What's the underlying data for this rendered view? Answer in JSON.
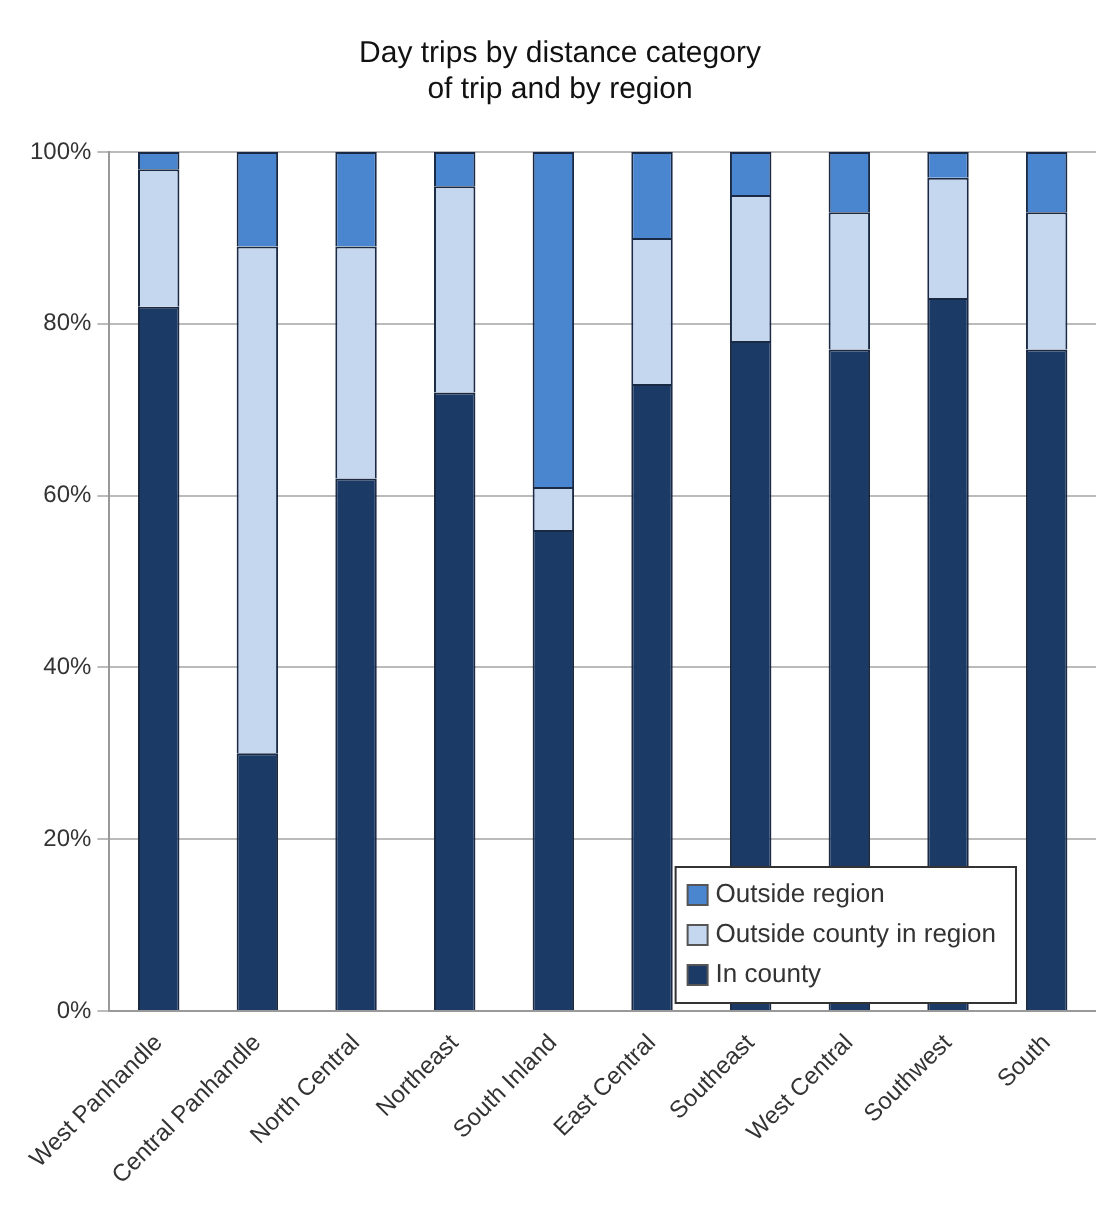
{
  "chart_data": {
    "type": "bar",
    "title": "Day trips by distance category\nof trip and by region",
    "stacked": true,
    "categories": [
      "West Panhandle",
      "Central Panhandle",
      "North Central",
      "Northeast",
      "South Inland",
      "East Central",
      "Southeast",
      "West Central",
      "Southwest",
      "South"
    ],
    "series": [
      {
        "name": "In county",
        "color": "#1c3a66",
        "values": [
          82,
          30,
          62,
          72,
          56,
          73,
          78,
          77,
          83,
          77
        ]
      },
      {
        "name": "Outside county in region",
        "color": "#c5d7ef",
        "values": [
          16,
          59,
          27,
          24,
          5,
          17,
          17,
          16,
          14,
          16
        ]
      },
      {
        "name": "Outside region",
        "color": "#4a86d0",
        "values": [
          2,
          11,
          11,
          4,
          39,
          10,
          5,
          7,
          3,
          7
        ]
      }
    ],
    "ylim": [
      0,
      100
    ],
    "yticks": [
      {
        "value": 0,
        "label": "0%"
      },
      {
        "value": 20,
        "label": "20%"
      },
      {
        "value": 40,
        "label": "40%"
      },
      {
        "value": 60,
        "label": "60%"
      },
      {
        "value": 80,
        "label": "80%"
      },
      {
        "value": 100,
        "label": "100%"
      }
    ],
    "grid": "y",
    "legend": "bottom right"
  }
}
